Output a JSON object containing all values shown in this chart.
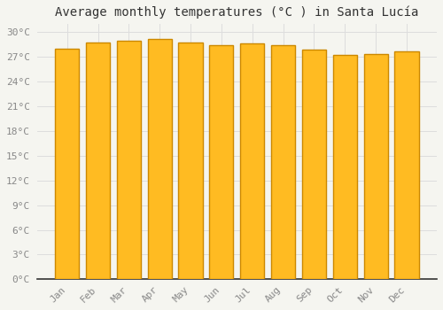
{
  "title": "Average monthly temperatures (°C ) in Santa Lucía",
  "months": [
    "Jan",
    "Feb",
    "Mar",
    "Apr",
    "May",
    "Jun",
    "Jul",
    "Aug",
    "Sep",
    "Oct",
    "Nov",
    "Dec"
  ],
  "values": [
    28.0,
    28.7,
    28.9,
    29.1,
    28.7,
    28.4,
    28.6,
    28.4,
    27.9,
    27.2,
    27.3,
    27.6
  ],
  "bar_color": "#FFBB22",
  "bar_edge_color": "#CC8800",
  "background_color": "#F5F5F0",
  "plot_bg_color": "#F5F5F0",
  "grid_color": "#DDDDDD",
  "ylim": [
    0,
    31
  ],
  "yticks": [
    0,
    3,
    6,
    9,
    12,
    15,
    18,
    21,
    24,
    27,
    30
  ],
  "title_fontsize": 10,
  "tick_fontsize": 8,
  "tick_color": "#888888",
  "title_color": "#333333"
}
